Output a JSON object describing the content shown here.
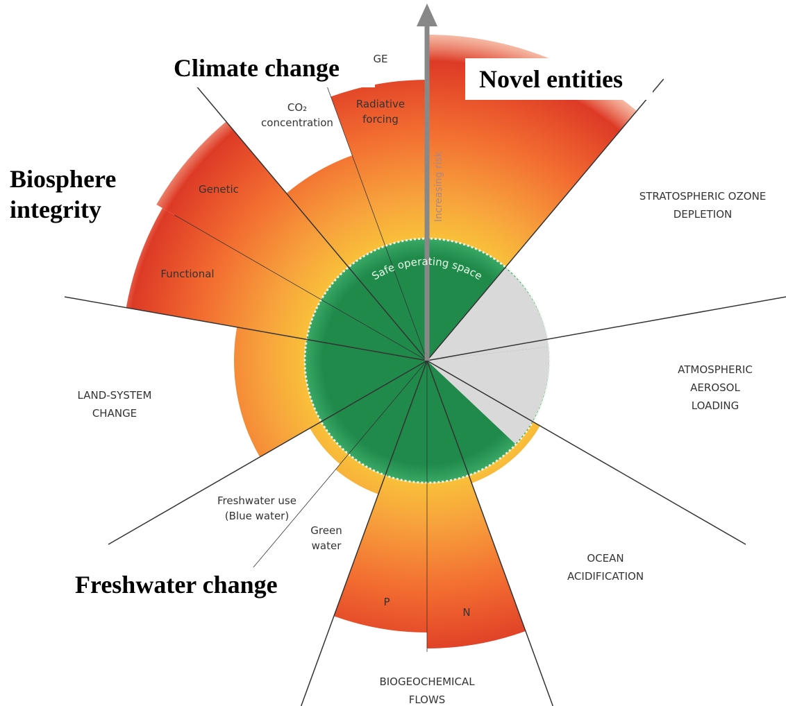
{
  "header_labels": {
    "climate": "Climate change",
    "novel": "Novel entities",
    "biosphere": [
      "Biosphere",
      "integrity"
    ],
    "freshwater": "Freshwater change"
  },
  "sector_labels": {
    "fragment": "GE",
    "co2": [
      "CO₂",
      "concentration"
    ],
    "radiative": [
      "Radiative",
      "forcing"
    ],
    "genetic": "Genetic",
    "functional": "Functional",
    "ozone": [
      "STRATOSPHERIC OZONE",
      "DEPLETION"
    ],
    "aerosol": [
      "ATMOSPHERIC",
      "AEROSOL",
      "LOADING"
    ],
    "ocean": [
      "OCEAN",
      "ACIDIFICATION"
    ],
    "biogeo": [
      "BIOGEOCHEMICAL",
      "FLOWS"
    ],
    "land": [
      "LAND-SYSTEM",
      "CHANGE"
    ],
    "blue": [
      "Freshwater use",
      "(Blue water)"
    ],
    "green": [
      "Green",
      "water"
    ],
    "p": "P",
    "n": "N"
  },
  "center_labels": {
    "safe": "Safe operating space",
    "risk": "Increasing risk"
  }
}
